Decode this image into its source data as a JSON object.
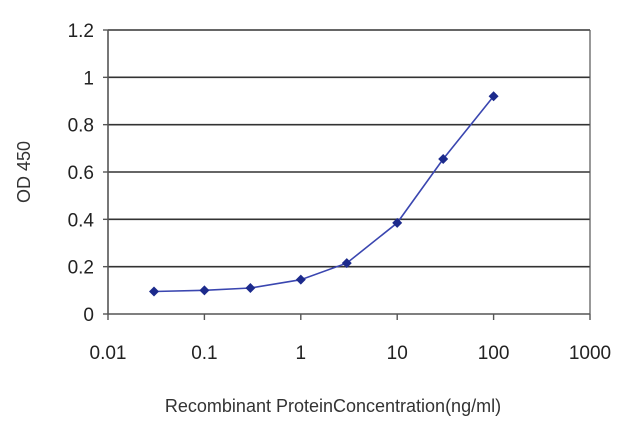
{
  "chart_data": {
    "type": "line",
    "xscale": "log",
    "xlabel": "Recombinant ProteinConcentration(ng/ml)",
    "ylabel": "OD 450",
    "xlim": [
      0.01,
      1000
    ],
    "ylim": [
      0,
      1.2
    ],
    "x_ticks": [
      "0.01",
      "0.1",
      "1",
      "10",
      "100",
      "1000"
    ],
    "y_ticks": [
      "0",
      "0.2",
      "0.4",
      "0.6",
      "0.8",
      "1",
      "1.2"
    ],
    "grid": "horizontal",
    "series": [
      {
        "x": [
          0.03,
          0.1,
          0.3,
          1,
          3,
          10,
          30,
          100
        ],
        "y": [
          0.095,
          0.1,
          0.11,
          0.145,
          0.215,
          0.385,
          0.655,
          0.92
        ]
      }
    ],
    "colors": {
      "line": "#3a46b0",
      "marker": "#1c2a8c",
      "grid": "#333333",
      "axis": "#555555"
    }
  }
}
